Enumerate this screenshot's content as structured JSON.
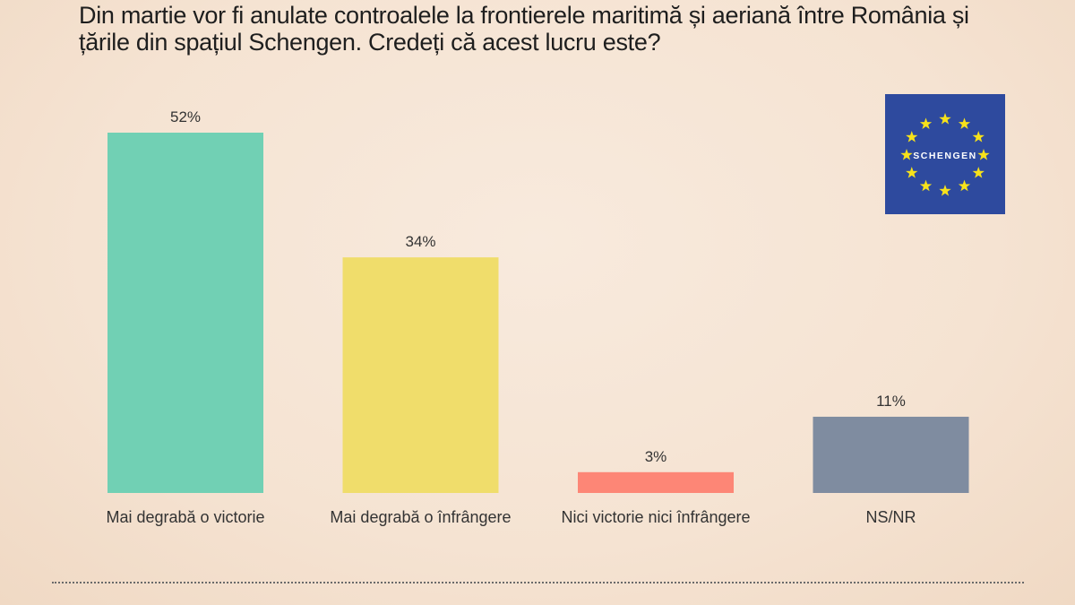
{
  "title": "Din martie vor fi anulate controalele la frontierele maritimă și aeriană între România și țările din spațiul Schengen. Credeți că acest lucru este?",
  "flag": {
    "text": "SCHENGEN",
    "background": "#2e4a9e",
    "star_color": "#f7e21b"
  },
  "chart_data": {
    "type": "bar",
    "title": "Din martie vor fi anulate controalele la frontierele maritimă și aeriană între România și țările din spațiul Schengen. Credeți că acest lucru este?",
    "categories": [
      "Mai degrabă o victorie",
      "Mai degrabă o înfrângere",
      "Nici victorie nici înfrângere",
      "NS/NR"
    ],
    "values": [
      52,
      34,
      3,
      11
    ],
    "labels": [
      "52%",
      "34%",
      "3%",
      "11%"
    ],
    "colors": [
      "#71d0b4",
      "#f0dd6b",
      "#fd8676",
      "#7f8ca0"
    ],
    "xlabel": "",
    "ylabel": "",
    "ylim": [
      0,
      52
    ],
    "grid": false,
    "legend": "none"
  }
}
